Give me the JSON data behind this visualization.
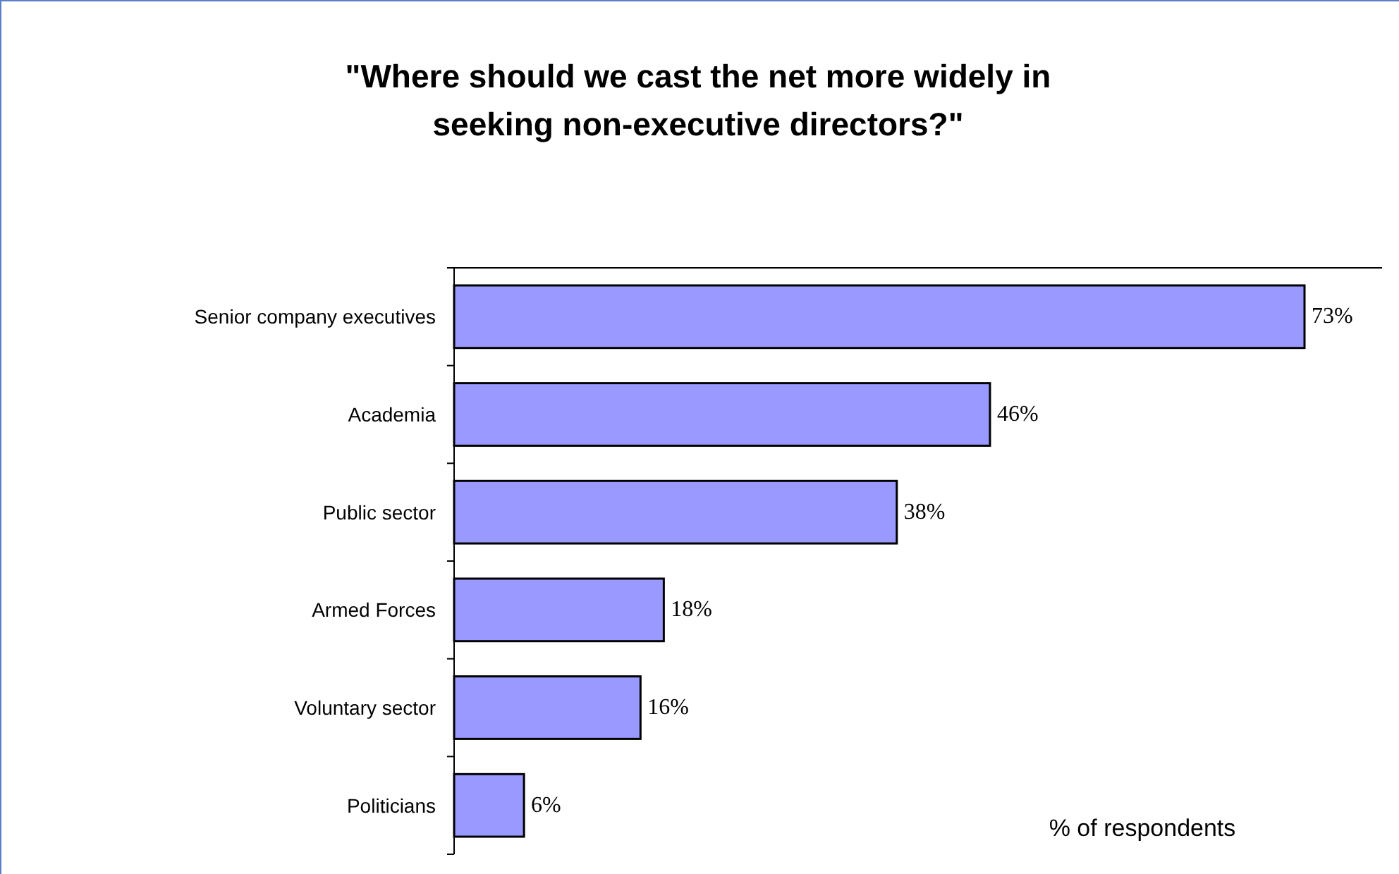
{
  "chart_data": {
    "type": "bar",
    "orientation": "horizontal",
    "title": "\"Where should we cast the net more widely in seeking non-executive directors?\"",
    "categories": [
      "Senior company executives",
      "Academia",
      "Public sector",
      "Armed Forces",
      "Voluntary sector",
      "Politicians"
    ],
    "values": [
      73,
      46,
      38,
      18,
      16,
      6
    ],
    "value_labels": [
      "73%",
      "46%",
      "38%",
      "18%",
      "16%",
      "6%"
    ],
    "color": "#9999ff",
    "annotations": [
      "% of respondents"
    ]
  }
}
